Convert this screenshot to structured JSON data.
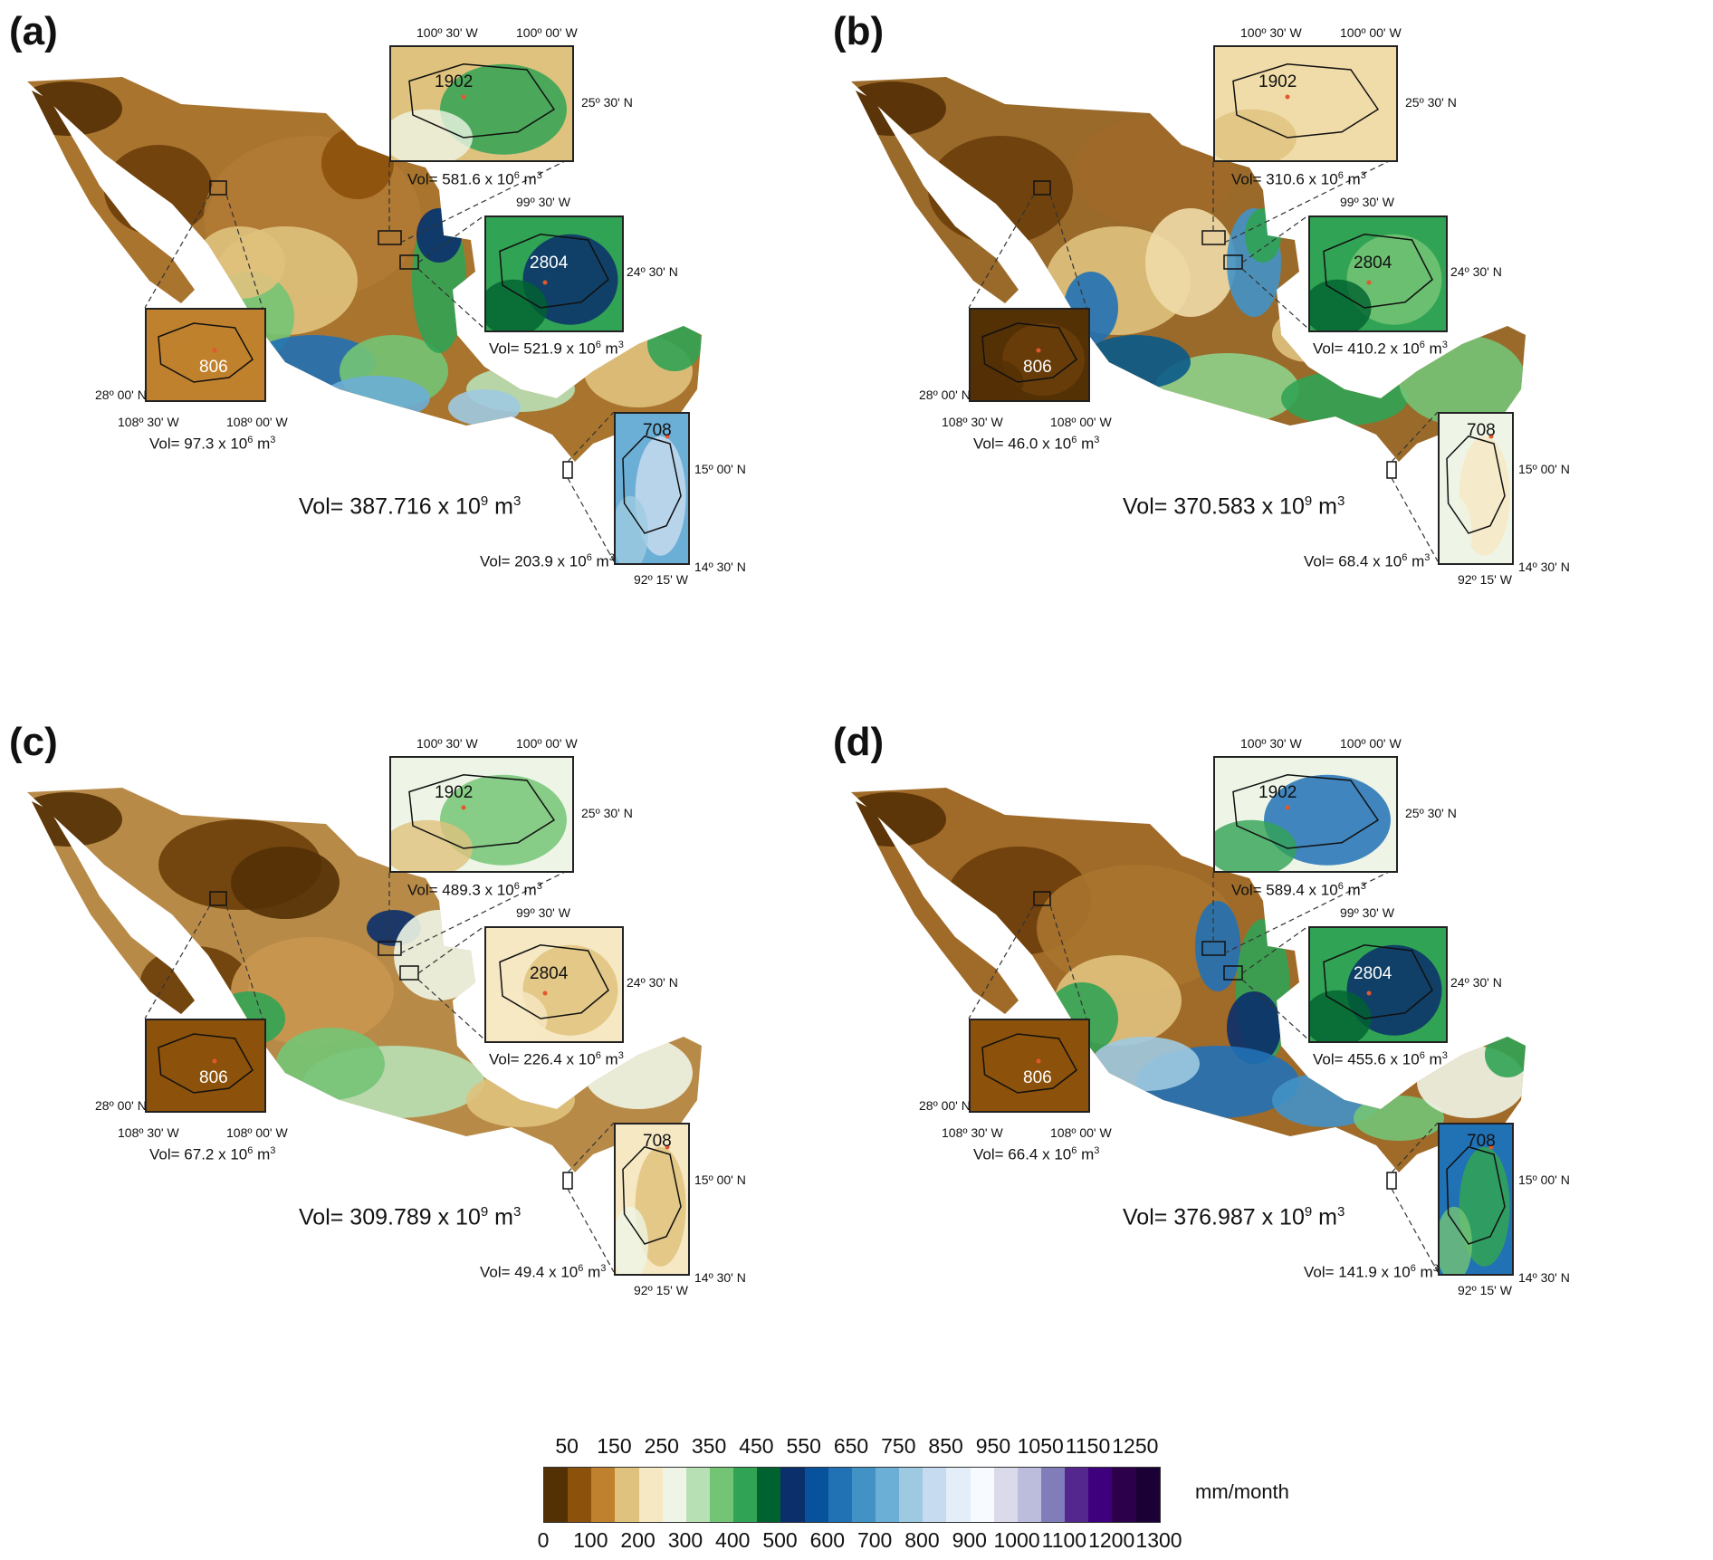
{
  "panels": [
    {
      "label": "(a)",
      "total_volume": "Vol= 387.716 x 10",
      "insets": [
        {
          "id": "1902",
          "volume": "Vol=  581.6 x 10",
          "coords": [
            "100º 30' W",
            "100º 00' W",
            "25º 30' N"
          ]
        },
        {
          "id": "2804",
          "volume": "Vol=  521.9 x 10",
          "coords": [
            "99º 30' W",
            "24º 30' N"
          ]
        },
        {
          "id": "806",
          "volume": "Vol=  97.3 x 10",
          "coords": [
            "28º 00' N",
            "108º 30' W",
            "108º 00' W"
          ]
        },
        {
          "id": "708",
          "volume": "Vol=  203.9 x 10",
          "coords": [
            "15º 00' N",
            "14º 30' N",
            "92º 15' W"
          ]
        }
      ]
    },
    {
      "label": "(b)",
      "total_volume": "Vol=  370.583 x 10",
      "insets": [
        {
          "id": "1902",
          "volume": "Vol=  310.6 x 10",
          "coords": [
            "100º 30' W",
            "100º 00' W",
            "25º 30' N"
          ]
        },
        {
          "id": "2804",
          "volume": "Vol=  410.2 x 10",
          "coords": [
            "99º 30' W",
            "24º 30' N"
          ]
        },
        {
          "id": "806",
          "volume": "Vol=  46.0 x 10",
          "coords": [
            "28º 00' N",
            "108º 30' W",
            "108º 00' W"
          ]
        },
        {
          "id": "708",
          "volume": "Vol=  68.4   x 10",
          "coords": [
            "15º 00' N",
            "14º 30' N",
            "92º 15' W"
          ]
        }
      ]
    },
    {
      "label": "(c)",
      "total_volume": "Vol=  309.789 x 10",
      "insets": [
        {
          "id": "1902",
          "volume": "Vol=  489.3 x 10",
          "coords": [
            "100º 30' W",
            "100º 00' W",
            "25º 30' N"
          ]
        },
        {
          "id": "2804",
          "volume": "Vol=  226.4 x 10",
          "coords": [
            "99º 30' W",
            "24º 30' N"
          ]
        },
        {
          "id": "806",
          "volume": "Vol=  67.2 x 10",
          "coords": [
            "28º 00' N",
            "108º 30' W",
            "108º 00' W"
          ]
        },
        {
          "id": "708",
          "volume": "Vol=  49.4 x 10",
          "coords": [
            "15º 00' N",
            "14º 30' N",
            "92º 15' W"
          ]
        }
      ]
    },
    {
      "label": "(d)",
      "total_volume": "Vol=  376.987 x 10",
      "insets": [
        {
          "id": "1902",
          "volume": "Vol=  589.4 x 10",
          "coords": [
            "100º 30' W",
            "100º 00' W",
            "25º 30' N"
          ]
        },
        {
          "id": "2804",
          "volume": "Vol=  455.6 x 10",
          "coords": [
            "99º 30' W",
            "24º 30' N"
          ]
        },
        {
          "id": "806",
          "volume": "Vol=  66.4 x 10",
          "coords": [
            "28º 00' N",
            "108º 30' W",
            "108º 00' W"
          ]
        },
        {
          "id": "708",
          "volume": "Vol=  141.9 x 10",
          "coords": [
            "15º 00' N",
            "14º 30' N",
            "92º 15' W"
          ]
        }
      ]
    }
  ],
  "units": {
    "big_exp": "9",
    "small_exp": "6",
    "m3": "m",
    "cube": "3"
  },
  "legend": {
    "unit": "mm/month",
    "top_ticks": [
      "50",
      "150",
      "250",
      "350",
      "450",
      "550",
      "650",
      "750",
      "850",
      "950",
      "1050",
      "1150",
      "1250"
    ],
    "bottom_ticks": [
      "0",
      "100",
      "200",
      "300",
      "400",
      "500",
      "600",
      "700",
      "800",
      "900",
      "1000",
      "1100",
      "1200",
      "1300"
    ],
    "colors": [
      "#543005",
      "#8c510a",
      "#bf812d",
      "#dfc27d",
      "#f6e8c3",
      "#eef5e6",
      "#b8e0b5",
      "#74c476",
      "#31a354",
      "#00622f",
      "#0a2f6b",
      "#08519c",
      "#2171b5",
      "#4292c6",
      "#6baed6",
      "#9ecae1",
      "#c6dbef",
      "#e3eef9",
      "#f7fbff",
      "#dadaeb",
      "#bcbddc",
      "#807dba",
      "#54278f",
      "#3f007d",
      "#2d004b",
      "#1a0035"
    ]
  }
}
